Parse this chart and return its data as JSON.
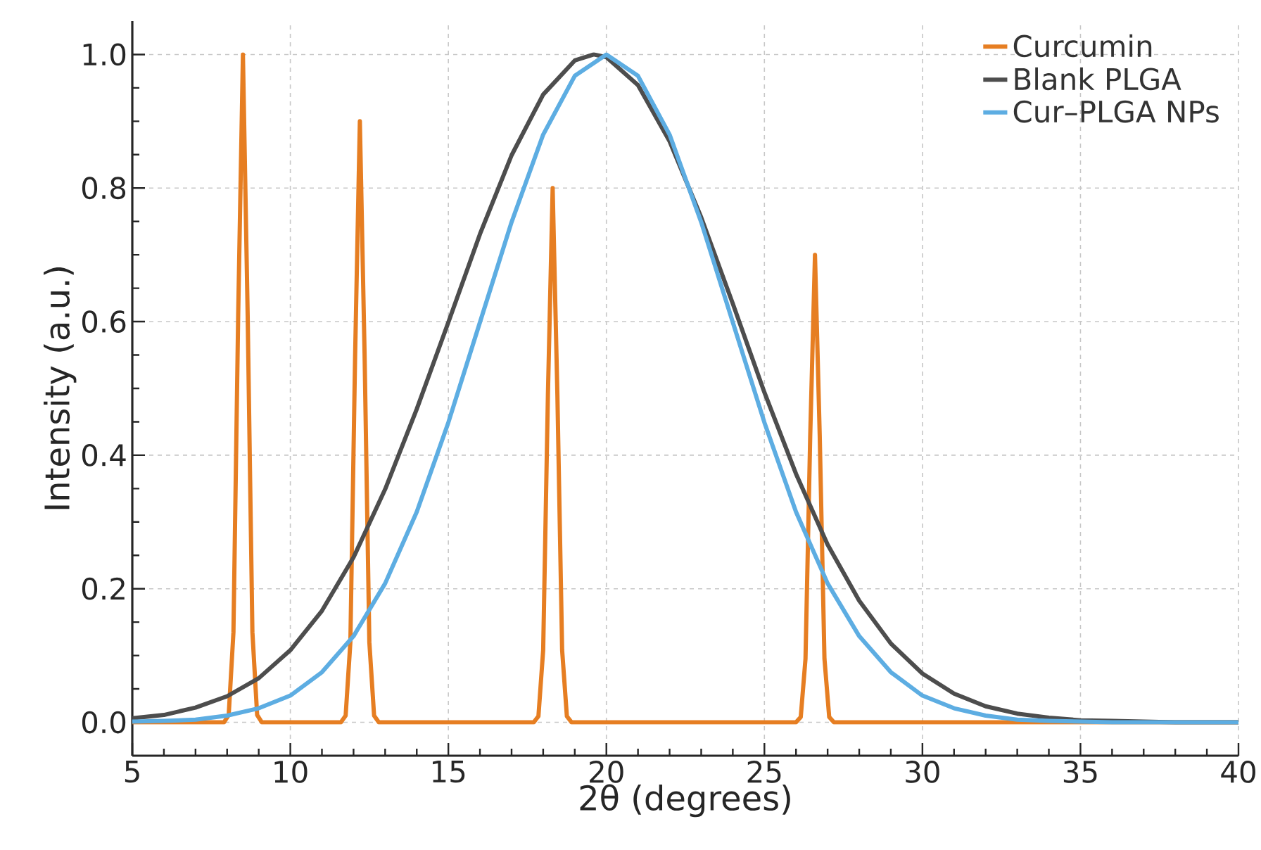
{
  "chart_data": {
    "type": "line",
    "xlabel": "2θ (degrees)",
    "ylabel": "Intensity (a.u.)",
    "xlim": [
      5,
      40
    ],
    "ylim": [
      -0.05,
      1.05
    ],
    "xticks": [
      5,
      10,
      15,
      20,
      25,
      30,
      35,
      40
    ],
    "yticks": [
      {
        "value": 0,
        "label": "0.0"
      },
      {
        "value": 0.2,
        "label": "0.2"
      },
      {
        "value": 0.4,
        "label": "0.4"
      },
      {
        "value": 0.6,
        "label": "0.6"
      },
      {
        "value": 0.8,
        "label": "0.8"
      },
      {
        "value": 1,
        "label": "1.0"
      }
    ],
    "grid": true,
    "legend": "top right",
    "series": [
      {
        "name": "Curcumin",
        "color": "#e67e22",
        "x": [
          5,
          7.9,
          8.05,
          8.2,
          8.35,
          8.5,
          8.65,
          8.8,
          8.95,
          9.1,
          11.6,
          11.75,
          11.9,
          12.05,
          12.2,
          12.35,
          12.5,
          12.65,
          12.8,
          17.7,
          17.85,
          18.0,
          18.15,
          18.3,
          18.45,
          18.6,
          18.75,
          18.9,
          26.0,
          26.15,
          26.3,
          26.45,
          26.6,
          26.75,
          26.9,
          27.05,
          27.2,
          40
        ],
        "values": [
          0,
          0,
          0.011,
          0.135,
          0.61,
          1.0,
          0.61,
          0.135,
          0.011,
          0,
          0,
          0.01,
          0.12,
          0.55,
          0.9,
          0.55,
          0.12,
          0.01,
          0,
          0,
          0.009,
          0.108,
          0.49,
          0.8,
          0.49,
          0.108,
          0.009,
          0,
          0,
          0.008,
          0.095,
          0.43,
          0.7,
          0.43,
          0.095,
          0.008,
          0,
          0
        ]
      },
      {
        "name": "Blank PLGA",
        "color": "#4d4d4d",
        "x": [
          5,
          6,
          7,
          8,
          9,
          10,
          11,
          12,
          13,
          14,
          15,
          16,
          17,
          18,
          19,
          19.6,
          20,
          21,
          22,
          23,
          24,
          25,
          26,
          27,
          28,
          29,
          30,
          31,
          32,
          33,
          34,
          35,
          36,
          38,
          40
        ],
        "values": [
          0.006,
          0.011,
          0.022,
          0.039,
          0.066,
          0.108,
          0.167,
          0.247,
          0.349,
          0.469,
          0.599,
          0.731,
          0.849,
          0.94,
          0.991,
          1.0,
          0.996,
          0.954,
          0.87,
          0.756,
          0.627,
          0.494,
          0.372,
          0.266,
          0.182,
          0.118,
          0.073,
          0.043,
          0.024,
          0.013,
          0.007,
          0.003,
          0.002,
          0,
          0
        ]
      },
      {
        "name": "Cur–PLGA NPs",
        "color": "#5dade2",
        "x": [
          5,
          6,
          7,
          8,
          9,
          10,
          11,
          12,
          13,
          14,
          15,
          16,
          17,
          18,
          19,
          20,
          21,
          22,
          23,
          24,
          25,
          26,
          27,
          28,
          29,
          30,
          31,
          32,
          33,
          34,
          35,
          36,
          38,
          40
        ],
        "values": [
          0.001,
          0.002,
          0.004,
          0.01,
          0.021,
          0.04,
          0.075,
          0.129,
          0.208,
          0.315,
          0.449,
          0.599,
          0.749,
          0.88,
          0.968,
          1.0,
          0.968,
          0.88,
          0.749,
          0.599,
          0.449,
          0.315,
          0.208,
          0.129,
          0.075,
          0.04,
          0.021,
          0.01,
          0.004,
          0.002,
          0.001,
          0,
          0,
          0
        ]
      }
    ]
  }
}
